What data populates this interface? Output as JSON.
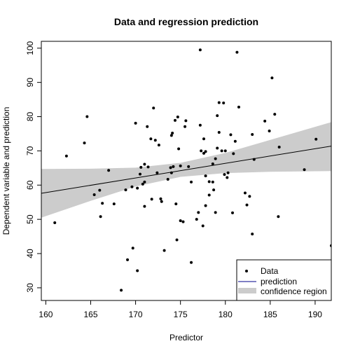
{
  "chart_data": {
    "type": "scatter",
    "title": "Data and regression prediction",
    "xlabel": "Predictor",
    "ylabel": "Dependent variable and prediction",
    "xlim": [
      159.5,
      191.8
    ],
    "ylim": [
      26.3,
      102.0
    ],
    "xticks": [
      160,
      165,
      170,
      175,
      180,
      185,
      190
    ],
    "yticks": [
      30,
      40,
      50,
      60,
      70,
      80,
      90,
      100
    ],
    "grid": false,
    "legend_position": "bottom-right",
    "legend": {
      "data": "Data",
      "prediction": "prediction",
      "confidence": "confidence region"
    },
    "colors": {
      "points": "#000000",
      "line": "#000000",
      "band": "#cccccc",
      "legend_line": "#00008b"
    },
    "prediction_line": {
      "x": [
        159.5,
        191.8
      ],
      "y": [
        57.6,
        71.4
      ]
    },
    "confidence_band": {
      "x": [
        159.5,
        165,
        170,
        175,
        180,
        185,
        191.8
      ],
      "lower": [
        50.5,
        55.4,
        59.6,
        62.4,
        63.5,
        63.9,
        64.1
      ],
      "upper": [
        64.7,
        64.8,
        65.1,
        66.5,
        69.4,
        73.2,
        78.4
      ]
    },
    "points": [
      {
        "x": 161.0,
        "y": 49.0
      },
      {
        "x": 162.3,
        "y": 68.5
      },
      {
        "x": 164.3,
        "y": 72.3
      },
      {
        "x": 164.6,
        "y": 80.0
      },
      {
        "x": 165.4,
        "y": 57.2
      },
      {
        "x": 166.0,
        "y": 58.5
      },
      {
        "x": 166.1,
        "y": 50.8
      },
      {
        "x": 166.3,
        "y": 54.7
      },
      {
        "x": 167.0,
        "y": 64.3
      },
      {
        "x": 167.6,
        "y": 54.5
      },
      {
        "x": 168.4,
        "y": 29.3
      },
      {
        "x": 168.9,
        "y": 58.6
      },
      {
        "x": 169.1,
        "y": 38.2
      },
      {
        "x": 169.6,
        "y": 59.5
      },
      {
        "x": 169.7,
        "y": 41.6
      },
      {
        "x": 170.0,
        "y": 78.1
      },
      {
        "x": 170.2,
        "y": 35.0
      },
      {
        "x": 170.2,
        "y": 59.1
      },
      {
        "x": 170.5,
        "y": 63.2
      },
      {
        "x": 170.6,
        "y": 65.2
      },
      {
        "x": 170.8,
        "y": 60.3
      },
      {
        "x": 171.0,
        "y": 60.9
      },
      {
        "x": 171.0,
        "y": 53.8
      },
      {
        "x": 171.0,
        "y": 66.1
      },
      {
        "x": 171.3,
        "y": 77.1
      },
      {
        "x": 171.4,
        "y": 65.3
      },
      {
        "x": 171.7,
        "y": 73.5
      },
      {
        "x": 171.8,
        "y": 55.9
      },
      {
        "x": 172.0,
        "y": 82.5
      },
      {
        "x": 172.2,
        "y": 73.1
      },
      {
        "x": 172.4,
        "y": 63.6
      },
      {
        "x": 172.6,
        "y": 71.7
      },
      {
        "x": 172.8,
        "y": 56.0
      },
      {
        "x": 172.9,
        "y": 55.2
      },
      {
        "x": 173.2,
        "y": 40.9
      },
      {
        "x": 173.6,
        "y": 61.7
      },
      {
        "x": 173.9,
        "y": 65.1
      },
      {
        "x": 174.0,
        "y": 63.6
      },
      {
        "x": 174.0,
        "y": 74.5
      },
      {
        "x": 174.1,
        "y": 75.2
      },
      {
        "x": 174.2,
        "y": 65.4
      },
      {
        "x": 174.4,
        "y": 78.9
      },
      {
        "x": 174.5,
        "y": 54.5
      },
      {
        "x": 174.6,
        "y": 44.0
      },
      {
        "x": 174.7,
        "y": 79.9
      },
      {
        "x": 174.8,
        "y": 70.6
      },
      {
        "x": 175.0,
        "y": 65.6
      },
      {
        "x": 175.0,
        "y": 49.6
      },
      {
        "x": 175.3,
        "y": 49.3
      },
      {
        "x": 175.5,
        "y": 77.1
      },
      {
        "x": 175.6,
        "y": 78.8
      },
      {
        "x": 175.9,
        "y": 65.4
      },
      {
        "x": 176.2,
        "y": 37.4
      },
      {
        "x": 176.2,
        "y": 60.9
      },
      {
        "x": 176.8,
        "y": 50.0
      },
      {
        "x": 177.0,
        "y": 52.0
      },
      {
        "x": 177.2,
        "y": 99.5
      },
      {
        "x": 177.2,
        "y": 77.5
      },
      {
        "x": 177.3,
        "y": 70.0
      },
      {
        "x": 177.5,
        "y": 48.1
      },
      {
        "x": 177.6,
        "y": 69.3
      },
      {
        "x": 177.6,
        "y": 73.5
      },
      {
        "x": 177.8,
        "y": 62.7
      },
      {
        "x": 177.8,
        "y": 69.8
      },
      {
        "x": 177.8,
        "y": 54.0
      },
      {
        "x": 178.2,
        "y": 61.0
      },
      {
        "x": 178.2,
        "y": 57.1
      },
      {
        "x": 178.6,
        "y": 66.2
      },
      {
        "x": 178.6,
        "y": 60.9
      },
      {
        "x": 178.7,
        "y": 58.6
      },
      {
        "x": 178.9,
        "y": 52.0
      },
      {
        "x": 178.9,
        "y": 67.7
      },
      {
        "x": 179.1,
        "y": 70.8
      },
      {
        "x": 179.1,
        "y": 80.3
      },
      {
        "x": 179.3,
        "y": 84.1
      },
      {
        "x": 179.3,
        "y": 75.4
      },
      {
        "x": 179.6,
        "y": 70.0
      },
      {
        "x": 179.8,
        "y": 84.0
      },
      {
        "x": 179.9,
        "y": 63.1
      },
      {
        "x": 180.0,
        "y": 70.0
      },
      {
        "x": 180.2,
        "y": 62.2
      },
      {
        "x": 180.3,
        "y": 63.6
      },
      {
        "x": 180.6,
        "y": 74.7
      },
      {
        "x": 180.8,
        "y": 51.9
      },
      {
        "x": 180.9,
        "y": 69.2
      },
      {
        "x": 181.1,
        "y": 72.8
      },
      {
        "x": 181.3,
        "y": 98.8
      },
      {
        "x": 181.5,
        "y": 82.8
      },
      {
        "x": 182.2,
        "y": 57.7
      },
      {
        "x": 182.4,
        "y": 54.2
      },
      {
        "x": 182.7,
        "y": 56.7
      },
      {
        "x": 183.0,
        "y": 74.8
      },
      {
        "x": 183.0,
        "y": 45.7
      },
      {
        "x": 183.2,
        "y": 67.5
      },
      {
        "x": 184.4,
        "y": 78.7
      },
      {
        "x": 184.9,
        "y": 75.8
      },
      {
        "x": 185.2,
        "y": 91.3
      },
      {
        "x": 185.5,
        "y": 80.7
      },
      {
        "x": 185.9,
        "y": 50.8
      },
      {
        "x": 186.0,
        "y": 71.1
      },
      {
        "x": 188.8,
        "y": 64.5
      },
      {
        "x": 190.1,
        "y": 73.4
      },
      {
        "x": 191.8,
        "y": 42.3
      }
    ]
  }
}
